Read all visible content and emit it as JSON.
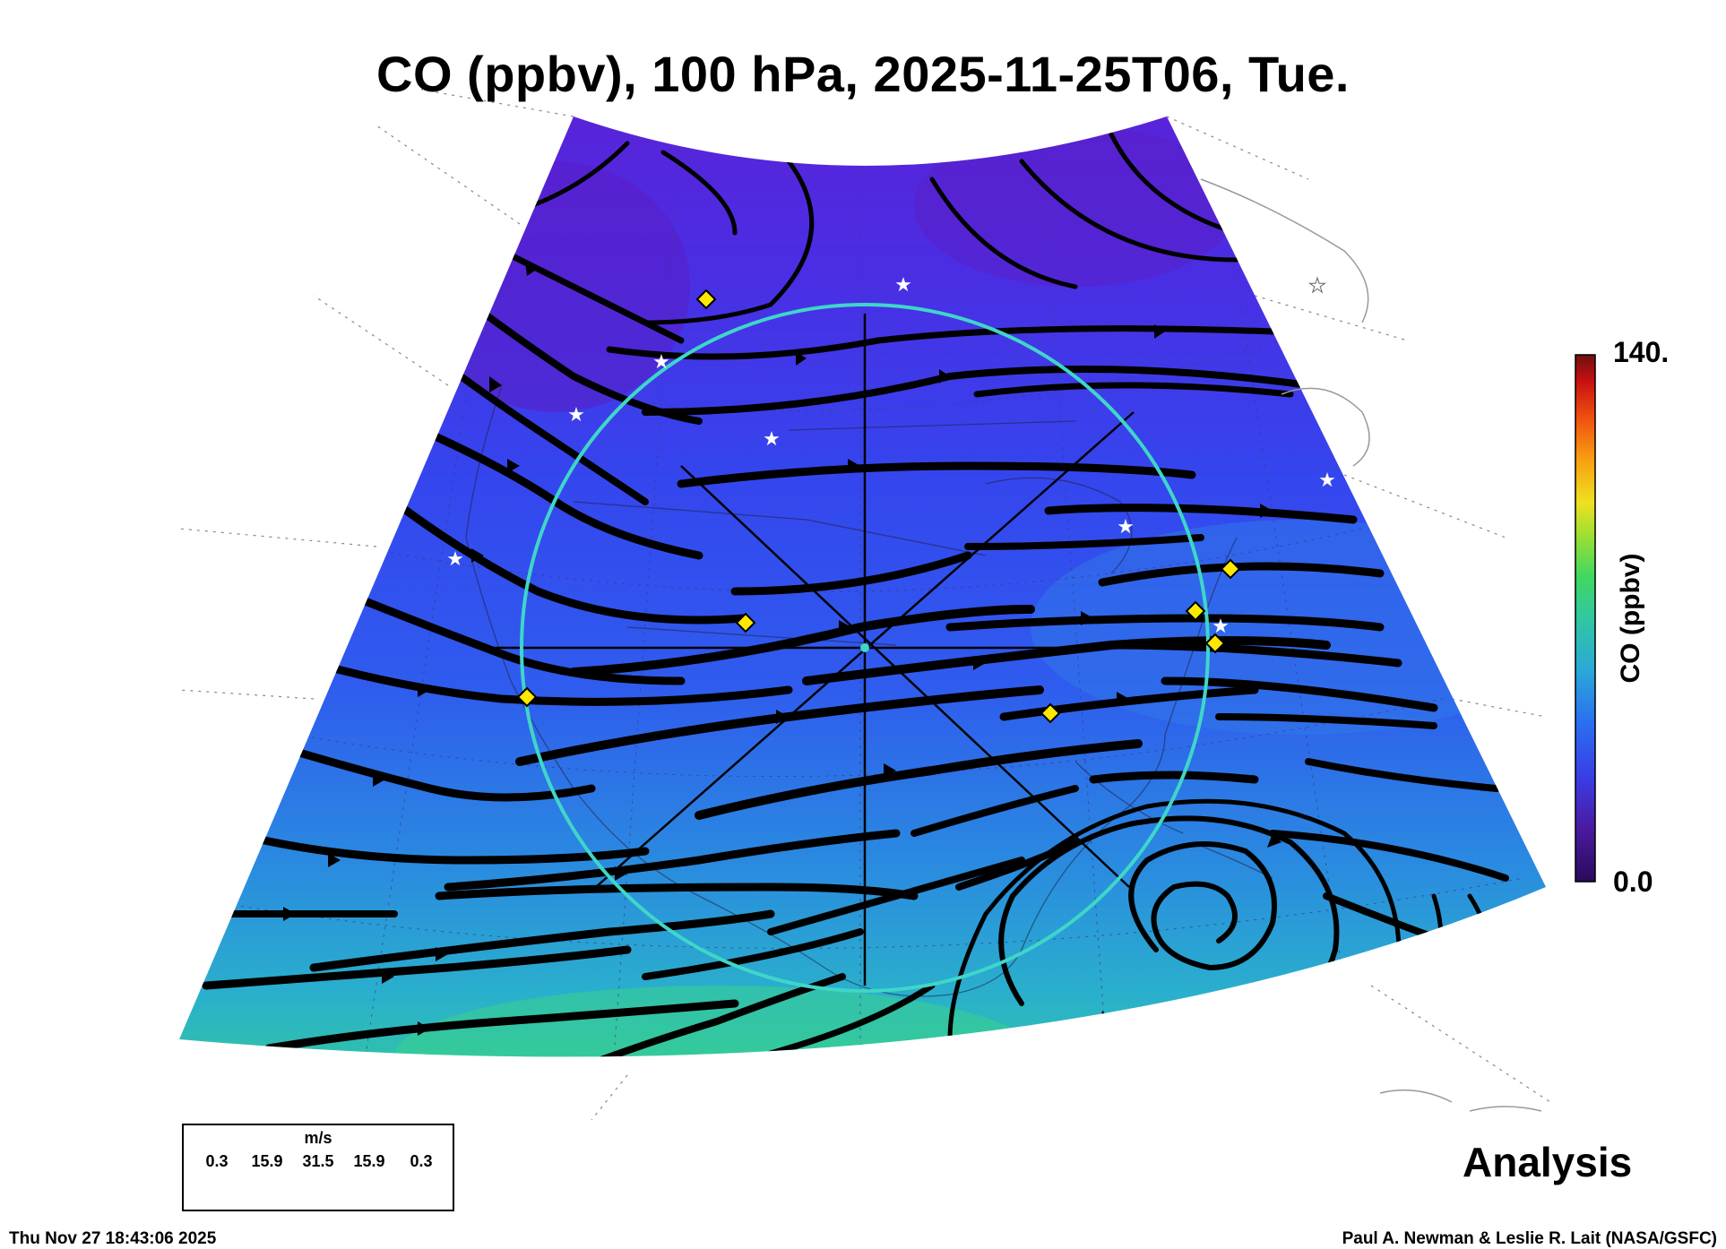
{
  "title": "CO (ppbv), 100 hPa, 2025-11-25T06, Tue.",
  "colorbar": {
    "max_label": "140.",
    "min_label": "0.0",
    "label": "CO (ppbv)",
    "colors": [
      "#2a0a5a",
      "#4a1aa0",
      "#3a3ee8",
      "#2a6ef0",
      "#2aa8d8",
      "#30c8a0",
      "#40d860",
      "#a0e030",
      "#f0e020",
      "#f8a010",
      "#f05010",
      "#c81010",
      "#701010"
    ]
  },
  "map": {
    "field_colors": {
      "north": "#5a22d8",
      "mid": "#2f50ee",
      "south": "#2aa6d6",
      "far_south": "#32d08c"
    },
    "streamline_color": "#000000",
    "grid_color": "#888888",
    "ring_color": "#3fd6c8",
    "marker_diamond_color": "#ffe800",
    "marker_star_color": "#ffffff"
  },
  "wind_scale": {
    "unit": "m/s",
    "values": [
      "0.3",
      "15.9",
      "31.5",
      "15.9",
      "0.3"
    ]
  },
  "analysis_label": "Analysis",
  "footer": {
    "timestamp": "Thu Nov 27 18:43:06 2025",
    "credit": "Paul A. Newman & Leslie R. Lait (NASA/GSFC)"
  }
}
